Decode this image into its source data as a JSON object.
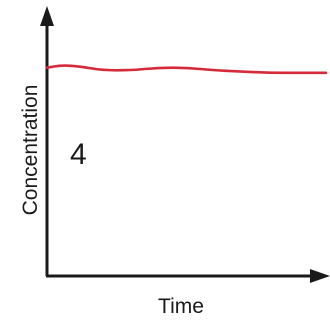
{
  "chart_data": {
    "type": "line",
    "xlabel": "Time",
    "ylabel": "Concentration",
    "annotation": "4",
    "grid": false,
    "ticks": false,
    "xlim": [
      0,
      1
    ],
    "ylim": [
      0,
      1
    ],
    "series": [
      {
        "color": "#d42a3a",
        "x": [
          0,
          0.05,
          0.12,
          0.2,
          0.3,
          0.4,
          0.5,
          0.6,
          0.7,
          0.8,
          0.9,
          1.0
        ],
        "y": [
          0.82,
          0.83,
          0.825,
          0.81,
          0.81,
          0.82,
          0.82,
          0.81,
          0.805,
          0.8,
          0.8,
          0.8
        ]
      }
    ]
  }
}
